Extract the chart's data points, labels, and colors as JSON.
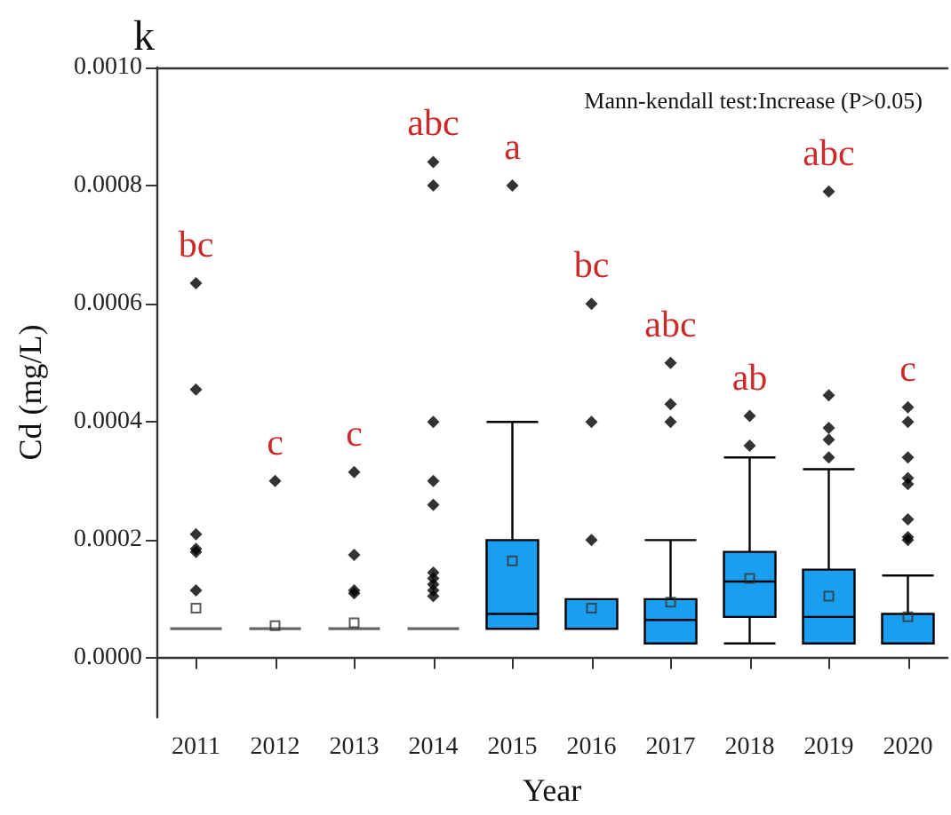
{
  "chart_data": {
    "type": "box",
    "title": "k",
    "xlabel": "Year",
    "ylabel": "Cd (mg/L)",
    "categories": [
      "2011",
      "2012",
      "2013",
      "2014",
      "2015",
      "2016",
      "2017",
      "2018",
      "2019",
      "2020"
    ],
    "colors": [
      "#666666",
      "#666666",
      "#666666",
      "#666666",
      "#1a9ff0",
      "#1a9ff0",
      "#1a9ff0",
      "#1a9ff0",
      "#1a9ff0",
      "#1a9ff0"
    ],
    "marker": "diamond",
    "boxes": [
      {
        "low": 5e-05,
        "q1": 5e-05,
        "median": 5e-05,
        "q3": 5e-05,
        "high": 5e-05,
        "mean": 8.5e-05,
        "outliers": [
          0.000635,
          0.000455,
          0.00021,
          0.000185,
          0.00018,
          0.000115
        ]
      },
      {
        "low": 5e-05,
        "q1": 5e-05,
        "median": 5e-05,
        "q3": 5e-05,
        "high": 5e-05,
        "mean": 5.5e-05,
        "outliers": [
          0.0003
        ]
      },
      {
        "low": 5e-05,
        "q1": 5e-05,
        "median": 5e-05,
        "q3": 5e-05,
        "high": 5e-05,
        "mean": 6e-05,
        "outliers": [
          0.000315,
          0.000175,
          0.000115,
          0.00011
        ]
      },
      {
        "low": 5e-05,
        "q1": 5e-05,
        "median": 5e-05,
        "q3": 5e-05,
        "high": 5e-05,
        "outliers": [
          0.00084,
          0.0008,
          0.0004,
          0.0003,
          0.00026,
          0.000145,
          0.000135,
          0.000125,
          0.000115,
          0.000105
        ]
      },
      {
        "low": 5e-05,
        "q1": 5e-05,
        "median": 7.5e-05,
        "q3": 0.0002,
        "high": 0.0004,
        "mean": 0.000165,
        "outliers": [
          0.0008
        ]
      },
      {
        "low": 5e-05,
        "q1": 5e-05,
        "median": 5e-05,
        "q3": 0.0001,
        "high": 0.0001,
        "mean": 8.5e-05,
        "outliers": [
          0.0006,
          0.0004,
          0.0002
        ]
      },
      {
        "low": 2.5e-05,
        "q1": 2.5e-05,
        "median": 6.5e-05,
        "q3": 0.0001,
        "high": 0.0002,
        "mean": 9.5e-05,
        "outliers": [
          0.0005,
          0.00043,
          0.0004
        ]
      },
      {
        "low": 2.5e-05,
        "q1": 7e-05,
        "median": 0.00013,
        "q3": 0.00018,
        "high": 0.00034,
        "mean": 0.000135,
        "outliers": [
          0.00041,
          0.00036
        ]
      },
      {
        "low": 2.5e-05,
        "q1": 2.5e-05,
        "median": 7e-05,
        "q3": 0.00015,
        "high": 0.00032,
        "mean": 0.000105,
        "outliers": [
          0.00079,
          0.000445,
          0.00039,
          0.00037,
          0.00034
        ]
      },
      {
        "low": 2.5e-05,
        "q1": 2.5e-05,
        "median": 2.5e-05,
        "q3": 7.5e-05,
        "high": 0.00014,
        "mean": 7e-05,
        "outliers": [
          0.000425,
          0.0004,
          0.00034,
          0.000305,
          0.000295,
          0.000235,
          0.000205,
          0.0002
        ]
      }
    ],
    "ylim": [
      -0.0001,
      0.001
    ],
    "yticks": [
      {
        "value": 0,
        "label": "0.0000"
      },
      {
        "value": 0.0002,
        "label": "0.0002"
      },
      {
        "value": 0.0004,
        "label": "0.0004"
      },
      {
        "value": 0.0006,
        "label": "0.0006"
      },
      {
        "value": 0.0008,
        "label": "0.0008"
      },
      {
        "value": 0.001,
        "label": "0.0010"
      }
    ],
    "annotations": [
      "bc",
      "c",
      "c",
      "abc",
      "a",
      "bc",
      "abc",
      "ab",
      "abc",
      "c",
      "Mann-kendall test:Increase (P>0.05)"
    ]
  }
}
